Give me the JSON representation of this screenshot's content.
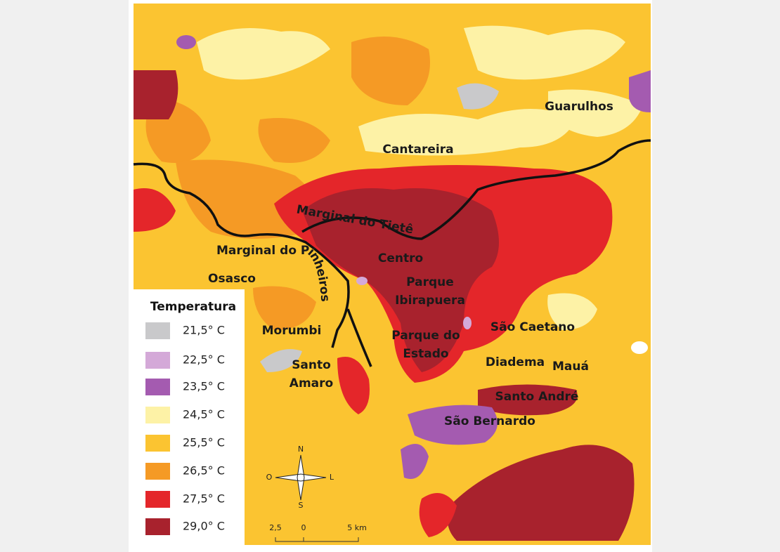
{
  "map": {
    "labels": [
      {
        "lines": [
          "Guarulhos"
        ]
      },
      {
        "lines": [
          "Cantareira"
        ]
      },
      {
        "lines": [
          "Marginal do Tietê"
        ]
      },
      {
        "lines": [
          "Marginal do Pinheiros"
        ]
      },
      {
        "lines": [
          "Centro"
        ]
      },
      {
        "lines": [
          "Osasco"
        ]
      },
      {
        "lines": [
          "Parque",
          "Ibirapuera"
        ]
      },
      {
        "lines": [
          "Morumbi"
        ]
      },
      {
        "lines": [
          "São Caetano"
        ]
      },
      {
        "lines": [
          "Parque do",
          "Estado"
        ]
      },
      {
        "lines": [
          "Santo",
          "Amaro"
        ]
      },
      {
        "lines": [
          "Diadema"
        ]
      },
      {
        "lines": [
          "Mauá"
        ]
      },
      {
        "lines": [
          "Santo André"
        ]
      },
      {
        "lines": [
          "São Bernardo"
        ]
      }
    ],
    "legend": {
      "title": "Temperatura",
      "items": [
        {
          "label": "21,5° C",
          "color": "#c9c9cb"
        },
        {
          "label": "22,5° C",
          "color": "#d4a9d8"
        },
        {
          "label": "23,5° C",
          "color": "#a45bb0"
        },
        {
          "label": "24,5° C",
          "color": "#fdf2a6"
        },
        {
          "label": "25,5° C",
          "color": "#fbc431"
        },
        {
          "label": "26,5° C",
          "color": "#f59a25"
        },
        {
          "label": "27,5° C",
          "color": "#e4262a"
        },
        {
          "label": "29,0° C",
          "color": "#a8222d"
        }
      ]
    },
    "compass": [
      "N",
      "S",
      "O",
      "L"
    ],
    "scale": [
      "2,5",
      "0",
      "5 km"
    ]
  }
}
